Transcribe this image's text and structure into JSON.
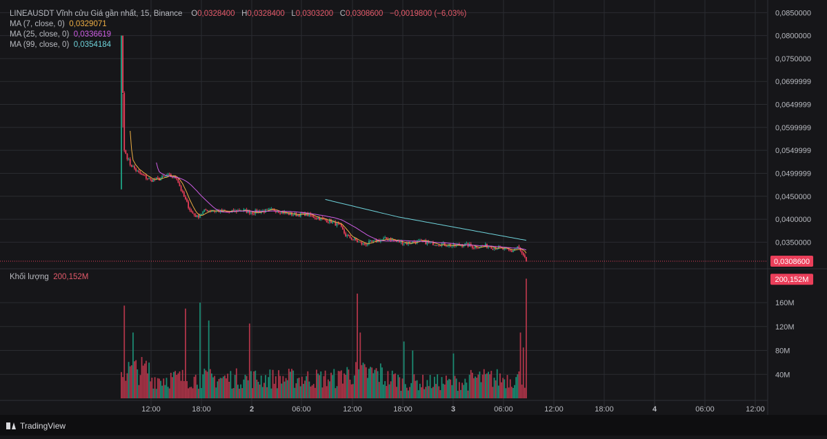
{
  "legend": {
    "symbol": "LINEAUSDT Vĩnh cửu Giá gần nhất, 15, Binance",
    "o_label": "O",
    "o": "0,0328400",
    "h_label": "H",
    "h": "0,0328400",
    "l_label": "L",
    "l": "0,0303200",
    "c_label": "C",
    "c": "0,0308600",
    "change": "−0,0019800 (−6,03%)",
    "ma7_label": "MA (7, close, 0)",
    "ma7": "0,0329071",
    "ma25_label": "MA (25, close, 0)",
    "ma25": "0,0336619",
    "ma99_label": "MA (99, close, 0)",
    "ma99": "0,0354184"
  },
  "volume_legend": {
    "label": "Khối lượng",
    "value": "200,152M"
  },
  "brand": {
    "name": "TradingView"
  },
  "colors": {
    "background": "#161619",
    "grid": "#2b2c31",
    "up": "#1fa386",
    "down": "#ea3f5a",
    "up_volume": "#1b8a72",
    "down_volume": "#b03549",
    "ma7": "#f0b044",
    "ma25": "#cf5de6",
    "ma99": "#6fd4dc",
    "axis_text": "#b8bac0",
    "last_price_badge": "#ea3f5a"
  },
  "chart_data": {
    "type": "candlestick",
    "interval": "15",
    "exchange": "Binance",
    "x_tick_labels": [
      "12:00",
      "18:00",
      "2",
      "06:00",
      "12:00",
      "18:00",
      "3",
      "06:00",
      "12:00",
      "18:00",
      "4",
      "06:00",
      "12:00"
    ],
    "price_axis": {
      "ticks": [
        "0,0850000",
        "0,0800000",
        "0,0750000",
        "0,0699999",
        "0,0649999",
        "0,0599999",
        "0,0549999",
        "0,0499999",
        "0,0450000",
        "0,0400000",
        "0,0350000"
      ],
      "range": [
        0.0295,
        0.0855
      ],
      "last_price": "0,0308600",
      "last_price_value": 0.03086
    },
    "volume_axis": {
      "ticks": [
        "160M",
        "120M",
        "80M",
        "40M"
      ],
      "range": [
        0,
        205
      ],
      "unit": "M",
      "last_volume": "200,152M",
      "last_volume_value": 200.152
    },
    "price_anchors": [
      [
        0,
        0.08
      ],
      [
        2,
        0.055
      ],
      [
        6,
        0.052
      ],
      [
        12,
        0.05
      ],
      [
        20,
        0.0485
      ],
      [
        26,
        0.0488
      ],
      [
        32,
        0.0495
      ],
      [
        38,
        0.049
      ],
      [
        42,
        0.0455
      ],
      [
        48,
        0.0415
      ],
      [
        52,
        0.0405
      ],
      [
        58,
        0.042
      ],
      [
        66,
        0.0418
      ],
      [
        74,
        0.0415
      ],
      [
        82,
        0.042
      ],
      [
        90,
        0.0415
      ],
      [
        98,
        0.0418
      ],
      [
        106,
        0.042
      ],
      [
        114,
        0.0412
      ],
      [
        120,
        0.041
      ],
      [
        126,
        0.0412
      ],
      [
        132,
        0.0405
      ],
      [
        138,
        0.04
      ],
      [
        144,
        0.0395
      ],
      [
        150,
        0.0385
      ],
      [
        154,
        0.0365
      ],
      [
        160,
        0.0355
      ],
      [
        166,
        0.0345
      ],
      [
        172,
        0.035
      ],
      [
        178,
        0.0355
      ],
      [
        184,
        0.0358
      ],
      [
        188,
        0.0352
      ],
      [
        196,
        0.0348
      ],
      [
        204,
        0.0352
      ],
      [
        212,
        0.0348
      ],
      [
        220,
        0.0346
      ],
      [
        228,
        0.0342
      ],
      [
        236,
        0.0345
      ],
      [
        242,
        0.034
      ],
      [
        250,
        0.0342
      ],
      [
        258,
        0.0338
      ],
      [
        264,
        0.0333
      ],
      [
        268,
        0.033
      ],
      [
        272,
        0.034
      ],
      [
        275,
        0.0325
      ],
      [
        278,
        0.03086
      ]
    ],
    "ma99_anchors": [
      [
        140,
        0.0443
      ],
      [
        190,
        0.0405
      ],
      [
        278,
        0.0354
      ]
    ],
    "volume_spikes": [
      [
        2,
        155
      ],
      [
        8,
        110
      ],
      [
        44,
        150
      ],
      [
        54,
        160
      ],
      [
        60,
        130
      ],
      [
        88,
        125
      ],
      [
        162,
        175
      ],
      [
        164,
        110
      ],
      [
        194,
        95
      ],
      [
        200,
        80
      ],
      [
        228,
        75
      ],
      [
        274,
        110
      ],
      [
        276,
        85
      ],
      [
        278,
        200
      ]
    ],
    "volume_base": 35,
    "candle_count": 279
  }
}
